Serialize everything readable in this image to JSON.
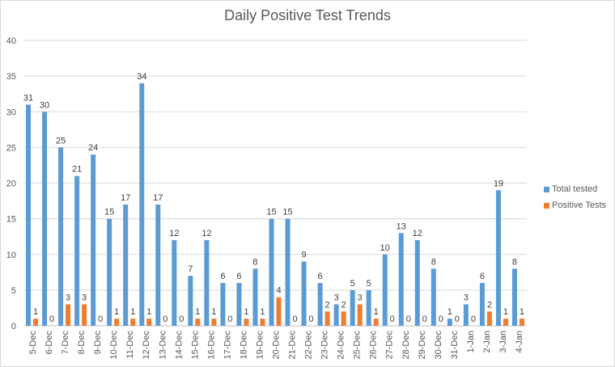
{
  "chart_data": {
    "type": "bar",
    "title": "Daily Positive Test Trends",
    "xlabel": "",
    "ylabel": "",
    "ylim": [
      0,
      40
    ],
    "yticks": [
      0,
      5,
      10,
      15,
      20,
      25,
      30,
      35,
      40
    ],
    "grid": true,
    "legend_position": "right",
    "categories": [
      "5-Dec",
      "6-Dec",
      "7-Dec",
      "8-Dec",
      "9-Dec",
      "10-Dec",
      "11-Dec",
      "12-Dec",
      "13-Dec",
      "14-Dec",
      "15-Dec",
      "16-Dec",
      "17-Dec",
      "18-Dec",
      "19-Dec",
      "20-Dec",
      "21-Dec",
      "22-Dec",
      "23-Dec",
      "24-Dec",
      "25-Dec",
      "26-Dec",
      "27-Dec",
      "28-Dec",
      "29-Dec",
      "30-Dec",
      "31-Dec",
      "1-Jan",
      "2-Jan",
      "3-Jan",
      "4-Jan"
    ],
    "series": [
      {
        "name": "Total tested",
        "color": "#5b9bd5",
        "values": [
          31,
          30,
          25,
          21,
          24,
          15,
          17,
          34,
          17,
          12,
          7,
          12,
          6,
          6,
          8,
          15,
          15,
          9,
          6,
          3,
          5,
          5,
          10,
          13,
          12,
          8,
          1,
          3,
          6,
          19,
          8
        ]
      },
      {
        "name": "Positive Tests",
        "color": "#ed7d31",
        "values": [
          1,
          0,
          3,
          3,
          0,
          1,
          1,
          1,
          0,
          0,
          1,
          1,
          0,
          1,
          1,
          4,
          0,
          0,
          2,
          2,
          3,
          1,
          0,
          0,
          0,
          0,
          0,
          0,
          2,
          1,
          1
        ]
      }
    ]
  }
}
